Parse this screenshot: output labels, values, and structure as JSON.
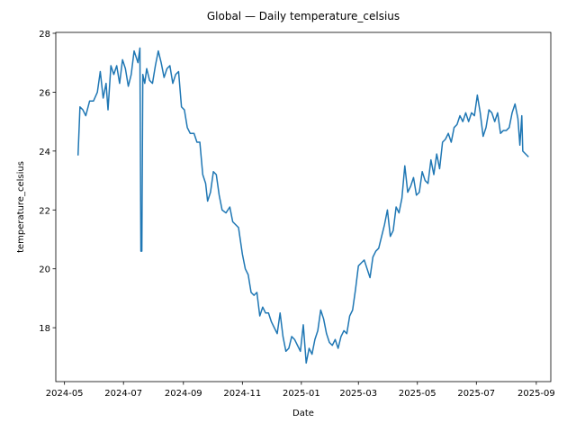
{
  "chart_data": {
    "type": "line",
    "title": "Global — Daily temperature_celsius",
    "xlabel": "Date",
    "ylabel": "temperature_celsius",
    "color": "#1f77b4",
    "x": [
      "2024-05-15",
      "2024-05-17",
      "2024-05-20",
      "2024-05-23",
      "2024-05-27",
      "2024-05-31",
      "2024-06-04",
      "2024-06-07",
      "2024-06-10",
      "2024-06-13",
      "2024-06-15",
      "2024-06-18",
      "2024-06-21",
      "2024-06-24",
      "2024-06-27",
      "2024-06-30",
      "2024-07-03",
      "2024-07-06",
      "2024-07-09",
      "2024-07-12",
      "2024-07-16",
      "2024-07-18",
      "2024-07-19",
      "2024-07-20",
      "2024-07-21",
      "2024-07-23",
      "2024-07-25",
      "2024-07-28",
      "2024-07-31",
      "2024-08-03",
      "2024-08-06",
      "2024-08-09",
      "2024-08-12",
      "2024-08-15",
      "2024-08-18",
      "2024-08-21",
      "2024-08-24",
      "2024-08-27",
      "2024-08-30",
      "2024-09-02",
      "2024-09-05",
      "2024-09-08",
      "2024-09-12",
      "2024-09-15",
      "2024-09-18",
      "2024-09-21",
      "2024-09-24",
      "2024-09-26",
      "2024-09-29",
      "2024-10-02",
      "2024-10-05",
      "2024-10-08",
      "2024-10-11",
      "2024-10-15",
      "2024-10-19",
      "2024-10-22",
      "2024-10-25",
      "2024-10-28",
      "2024-11-01",
      "2024-11-04",
      "2024-11-07",
      "2024-11-10",
      "2024-11-13",
      "2024-11-16",
      "2024-11-19",
      "2024-11-22",
      "2024-11-25",
      "2024-11-28",
      "2024-12-01",
      "2024-12-04",
      "2024-12-07",
      "2024-12-10",
      "2024-12-13",
      "2024-12-16",
      "2024-12-19",
      "2024-12-22",
      "2024-12-25",
      "2024-12-28",
      "2024-12-31",
      "2025-01-03",
      "2025-01-06",
      "2025-01-09",
      "2025-01-12",
      "2025-01-15",
      "2025-01-18",
      "2025-01-21",
      "2025-01-24",
      "2025-01-27",
      "2025-01-30",
      "2025-02-02",
      "2025-02-05",
      "2025-02-08",
      "2025-02-11",
      "2025-02-14",
      "2025-02-17",
      "2025-02-20",
      "2025-02-23",
      "2025-02-26",
      "2025-03-01",
      "2025-03-04",
      "2025-03-07",
      "2025-03-10",
      "2025-03-13",
      "2025-03-16",
      "2025-03-19",
      "2025-03-22",
      "2025-03-25",
      "2025-03-28",
      "2025-03-31",
      "2025-04-03",
      "2025-04-06",
      "2025-04-09",
      "2025-04-12",
      "2025-04-15",
      "2025-04-18",
      "2025-04-21",
      "2025-04-24",
      "2025-04-27",
      "2025-04-30",
      "2025-05-03",
      "2025-05-06",
      "2025-05-09",
      "2025-05-12",
      "2025-05-15",
      "2025-05-18",
      "2025-05-21",
      "2025-05-24",
      "2025-05-27",
      "2025-05-30",
      "2025-06-02",
      "2025-06-05",
      "2025-06-08",
      "2025-06-11",
      "2025-06-14",
      "2025-06-17",
      "2025-06-20",
      "2025-06-23",
      "2025-06-26",
      "2025-06-29",
      "2025-07-02",
      "2025-07-05",
      "2025-07-08",
      "2025-07-11",
      "2025-07-14",
      "2025-07-17",
      "2025-07-20",
      "2025-07-23",
      "2025-07-26",
      "2025-07-29",
      "2025-08-01",
      "2025-08-04",
      "2025-08-07",
      "2025-08-10",
      "2025-08-13",
      "2025-08-15",
      "2025-08-17",
      "2025-08-18",
      "2025-08-21",
      "2025-08-24"
    ],
    "values": [
      23.85,
      25.5,
      25.4,
      25.2,
      25.7,
      25.7,
      26.0,
      26.7,
      25.8,
      26.3,
      25.4,
      26.9,
      26.6,
      26.9,
      26.3,
      27.1,
      26.8,
      26.2,
      26.6,
      27.4,
      27.0,
      27.5,
      20.6,
      20.6,
      26.6,
      26.3,
      26.8,
      26.4,
      26.3,
      26.9,
      27.4,
      27.0,
      26.5,
      26.8,
      26.9,
      26.3,
      26.6,
      26.7,
      25.5,
      25.4,
      24.8,
      24.6,
      24.6,
      24.3,
      24.3,
      23.2,
      22.9,
      22.3,
      22.6,
      23.3,
      23.2,
      22.5,
      22.0,
      21.9,
      22.1,
      21.6,
      21.5,
      21.4,
      20.5,
      20.0,
      19.8,
      19.2,
      19.1,
      19.2,
      18.4,
      18.7,
      18.5,
      18.5,
      18.2,
      18.0,
      17.8,
      18.5,
      17.7,
      17.2,
      17.3,
      17.7,
      17.6,
      17.4,
      17.2,
      18.1,
      16.8,
      17.3,
      17.1,
      17.6,
      17.9,
      18.6,
      18.3,
      17.8,
      17.5,
      17.4,
      17.6,
      17.3,
      17.7,
      17.9,
      17.8,
      18.4,
      18.6,
      19.3,
      20.1,
      20.2,
      20.3,
      20.0,
      19.7,
      20.4,
      20.6,
      20.7,
      21.1,
      21.5,
      22.0,
      21.1,
      21.3,
      22.1,
      21.9,
      22.4,
      23.5,
      22.6,
      22.8,
      23.1,
      22.5,
      22.6,
      23.3,
      23.0,
      22.9,
      23.7,
      23.2,
      23.9,
      23.4,
      24.3,
      24.4,
      24.6,
      24.3,
      24.8,
      24.9,
      25.2,
      25.0,
      25.3,
      25.0,
      25.3,
      25.2,
      25.9,
      25.3,
      24.5,
      24.8,
      25.4,
      25.3,
      25.0,
      25.3,
      24.6,
      24.7,
      24.7,
      24.8,
      25.3,
      25.6,
      25.1,
      24.2,
      25.2,
      24.0,
      23.9,
      23.8
    ],
    "xlim": [
      "2024-04-22",
      "2025-09-16"
    ],
    "xticks": [
      {
        "value": "2024-05-01",
        "label": "2024-05"
      },
      {
        "value": "2024-07-01",
        "label": "2024-07"
      },
      {
        "value": "2024-09-01",
        "label": "2024-09"
      },
      {
        "value": "2024-11-01",
        "label": "2024-11"
      },
      {
        "value": "2025-01-01",
        "label": "2025-01"
      },
      {
        "value": "2025-03-01",
        "label": "2025-03"
      },
      {
        "value": "2025-05-01",
        "label": "2025-05"
      },
      {
        "value": "2025-07-01",
        "label": "2025-07"
      },
      {
        "value": "2025-09-01",
        "label": "2025-09"
      }
    ],
    "ylim": [
      16.17,
      28.03
    ],
    "yticks": [
      18,
      20,
      22,
      24,
      26,
      28
    ],
    "grid": false
  }
}
